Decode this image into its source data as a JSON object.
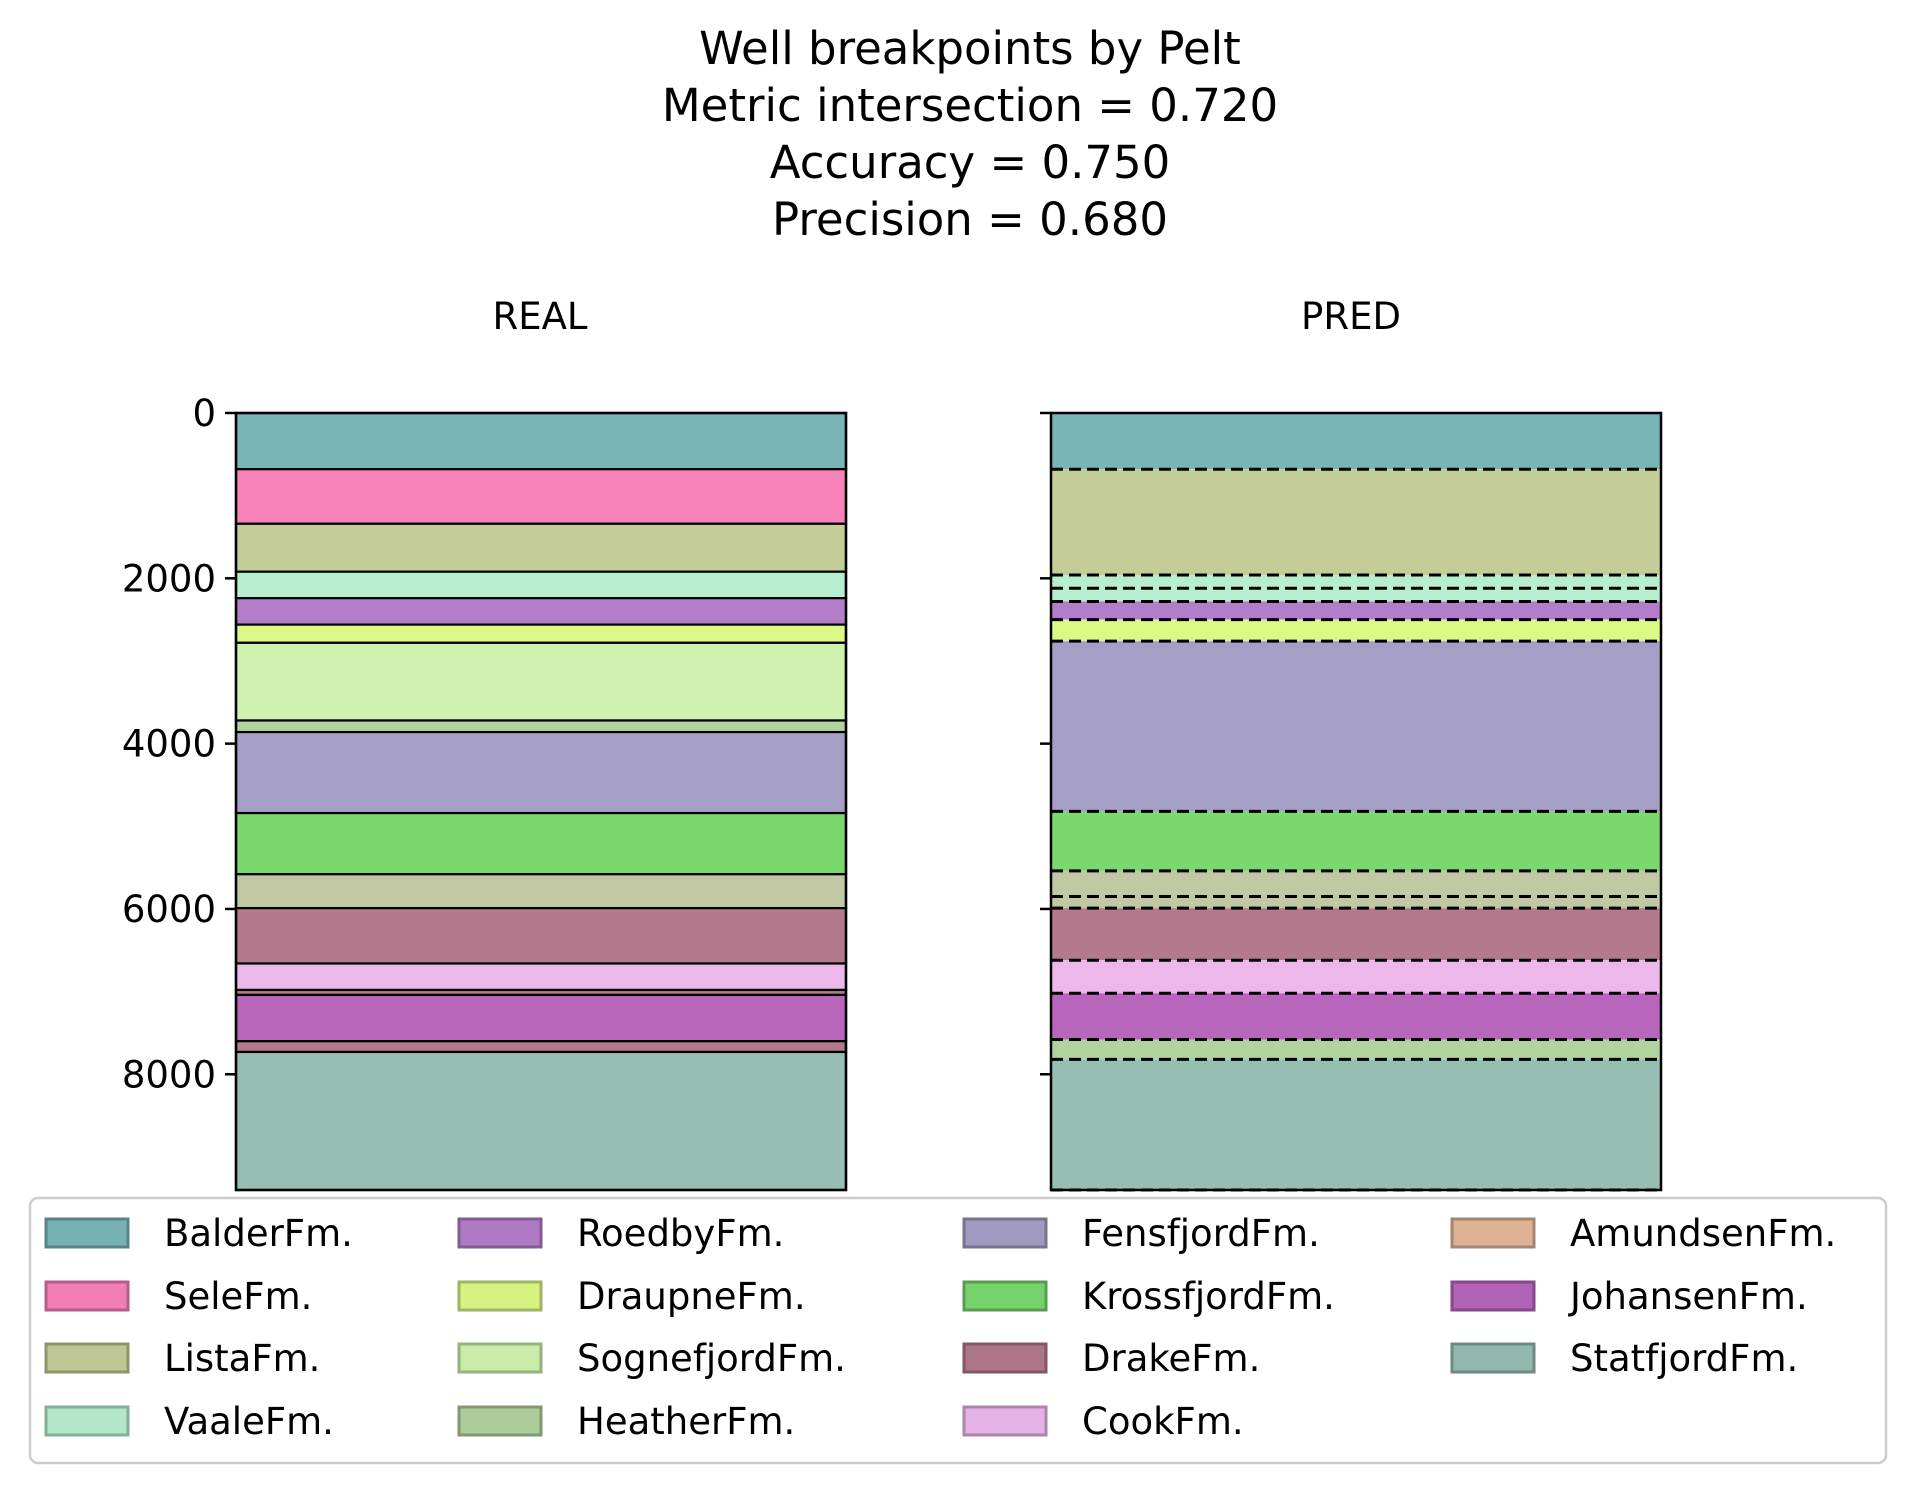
{
  "chart_data": {
    "type": "bar",
    "title": [
      "Well  breakpoints by Pelt",
      "Metric intersection = 0.720",
      "Accuracy = 0.750",
      "Precision = 0.680"
    ],
    "panels": [
      {
        "name": "REAL",
        "segments": [
          {
            "label": "BalderFm.",
            "from": 0,
            "to": 680
          },
          {
            "label": "SeleFm.",
            "from": 680,
            "to": 1340
          },
          {
            "label": "ListaFm.",
            "from": 1340,
            "to": 1920
          },
          {
            "label": "VaaleFm.",
            "from": 1920,
            "to": 2240
          },
          {
            "label": "RoedbyFm.",
            "from": 2240,
            "to": 2560
          },
          {
            "label": "DraupneFm.",
            "from": 2560,
            "to": 2780
          },
          {
            "label": "SognefjordFm.",
            "from": 2780,
            "to": 3720
          },
          {
            "label": "HeatherFm.",
            "from": 3720,
            "to": 3860
          },
          {
            "label": "FensfjordFm.",
            "from": 3860,
            "to": 4840
          },
          {
            "label": "KrossfjordFm.",
            "from": 4840,
            "to": 5580
          },
          {
            "label": "ListaFm.",
            "from": 5580,
            "to": 5990
          },
          {
            "label": "DrakeFm.",
            "from": 5990,
            "to": 6660
          },
          {
            "label": "CookFm.",
            "from": 6660,
            "to": 6980
          },
          {
            "label": "DrakeFm.",
            "from": 6980,
            "to": 7040
          },
          {
            "label": "JohansenFm.",
            "from": 7040,
            "to": 7600
          },
          {
            "label": "DrakeFm.",
            "from": 7600,
            "to": 7730
          },
          {
            "label": "StatfjordFm.",
            "from": 7730,
            "to": 9400
          }
        ],
        "breaks": []
      },
      {
        "name": "PRED",
        "segments": [
          {
            "label": "BalderFm.",
            "from": 0,
            "to": 680
          },
          {
            "label": "ListaFm.",
            "from": 680,
            "to": 1960
          },
          {
            "label": "VaaleFm.",
            "from": 1960,
            "to": 2280
          },
          {
            "label": "RoedbyFm.",
            "from": 2280,
            "to": 2500
          },
          {
            "label": "DraupneFm.",
            "from": 2500,
            "to": 2760
          },
          {
            "label": "FensfjordFm.",
            "from": 2760,
            "to": 4820
          },
          {
            "label": "KrossfjordFm.",
            "from": 4820,
            "to": 5540
          },
          {
            "label": "ListaFm.",
            "from": 5540,
            "to": 5990
          },
          {
            "label": "DrakeFm.",
            "from": 5990,
            "to": 6620
          },
          {
            "label": "CookFm.",
            "from": 6620,
            "to": 7020
          },
          {
            "label": "JohansenFm.",
            "from": 7020,
            "to": 7580
          },
          {
            "label": "HeatherFm.",
            "from": 7580,
            "to": 7820
          },
          {
            "label": "StatfjordFm.",
            "from": 7820,
            "to": 9400
          }
        ],
        "breaks": [
          680,
          1960,
          2120,
          2280,
          2500,
          2760,
          4820,
          5540,
          5850,
          5990,
          6620,
          7020,
          7580,
          7820,
          9400
        ]
      }
    ],
    "y_axis": {
      "ticks": [
        0,
        2000,
        4000,
        6000,
        8000
      ],
      "range": [
        0,
        9400
      ],
      "inverted": true
    },
    "grid": false,
    "legend": {
      "placement": "bottom",
      "columns": 4,
      "entries": [
        {
          "label": "BalderFm.",
          "color": "#79b5b7"
        },
        {
          "label": "SeleFm.",
          "color": "#f782b8"
        },
        {
          "label": "ListaFm.",
          "color": "#c4cd98"
        },
        {
          "label": "VaaleFm.",
          "color": "#b7eed0"
        },
        {
          "label": "RoedbyFm.",
          "color": "#b47dca"
        },
        {
          "label": "DraupneFm.",
          "color": "#dcf986"
        },
        {
          "label": "SognefjordFm.",
          "color": "#cff3af"
        },
        {
          "label": "HeatherFm.",
          "color": "#b1d39e"
        },
        {
          "label": "FensfjordFm.",
          "color": "#a59fc7"
        },
        {
          "label": "KrossfjordFm.",
          "color": "#7ad86d"
        },
        {
          "label": "DrakeFm.",
          "color": "#b3798c"
        },
        {
          "label": "CookFm.",
          "color": "#ecb8ec"
        },
        {
          "label": "AmundsenFm.",
          "color": "#e4b899"
        },
        {
          "label": "JohansenFm.",
          "color": "#b866bc"
        },
        {
          "label": "StatfjordFm.",
          "color": "#96beb2"
        }
      ]
    },
    "extra_colors": {
      "ListaFm.": "#c0c8a4"
    }
  }
}
